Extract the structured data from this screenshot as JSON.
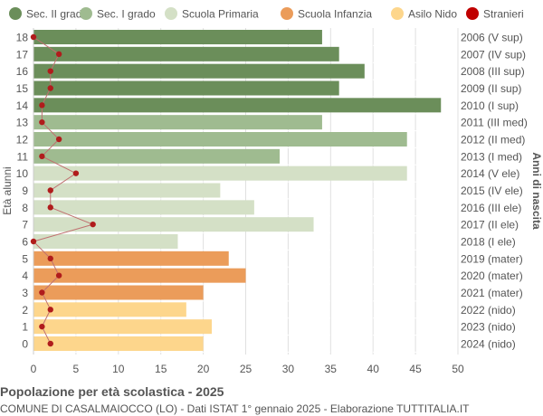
{
  "chart_data": {
    "type": "bar",
    "title": "Popolazione per età scolastica - 2025",
    "subtitle": "COMUNE DI CASALMAIOCCO (LO) - Dati ISTAT 1° gennaio 2025 - Elaborazione TUTTITALIA.IT",
    "ylabel": "Età alunni",
    "ylabel_right": "Anni di nascita",
    "xlim": [
      0,
      50
    ],
    "xticks": [
      0,
      5,
      10,
      15,
      20,
      25,
      30,
      35,
      40,
      45,
      50
    ],
    "grid": true,
    "legend_position": "top",
    "legend": [
      {
        "name": "Sec. II grado",
        "color": "#6b8e5a"
      },
      {
        "name": "Sec. I grado",
        "color": "#9fbb90"
      },
      {
        "name": "Scuola Primaria",
        "color": "#d4e0c6"
      },
      {
        "name": "Scuola Infanzia",
        "color": "#eb9c5a"
      },
      {
        "name": "Asilo Nido",
        "color": "#fdd68c"
      },
      {
        "name": "Stranieri",
        "color": "#c00000"
      }
    ],
    "ages": [
      18,
      17,
      16,
      15,
      14,
      13,
      12,
      11,
      10,
      9,
      8,
      7,
      6,
      5,
      4,
      3,
      2,
      1,
      0
    ],
    "birth_years": [
      "2006 (V sup)",
      "2007 (IV sup)",
      "2008 (III sup)",
      "2009 (II sup)",
      "2010 (I sup)",
      "2011 (III med)",
      "2012 (II med)",
      "2013 (I med)",
      "2014 (V ele)",
      "2015 (IV ele)",
      "2016 (III ele)",
      "2017 (II ele)",
      "2018 (I ele)",
      "2019 (mater)",
      "2020 (mater)",
      "2021 (mater)",
      "2022 (nido)",
      "2023 (nido)",
      "2024 (nido)"
    ],
    "categories_of_rows": [
      0,
      0,
      0,
      0,
      0,
      1,
      1,
      1,
      2,
      2,
      2,
      2,
      2,
      3,
      3,
      3,
      4,
      4,
      4
    ],
    "values": [
      34,
      36,
      39,
      36,
      48,
      34,
      44,
      29,
      44,
      22,
      26,
      33,
      17,
      23,
      25,
      20,
      18,
      21,
      20
    ],
    "stranieri": [
      0,
      3,
      2,
      2,
      1,
      1,
      3,
      1,
      5,
      2,
      2,
      7,
      0,
      2,
      3,
      1,
      2,
      1,
      2
    ]
  }
}
